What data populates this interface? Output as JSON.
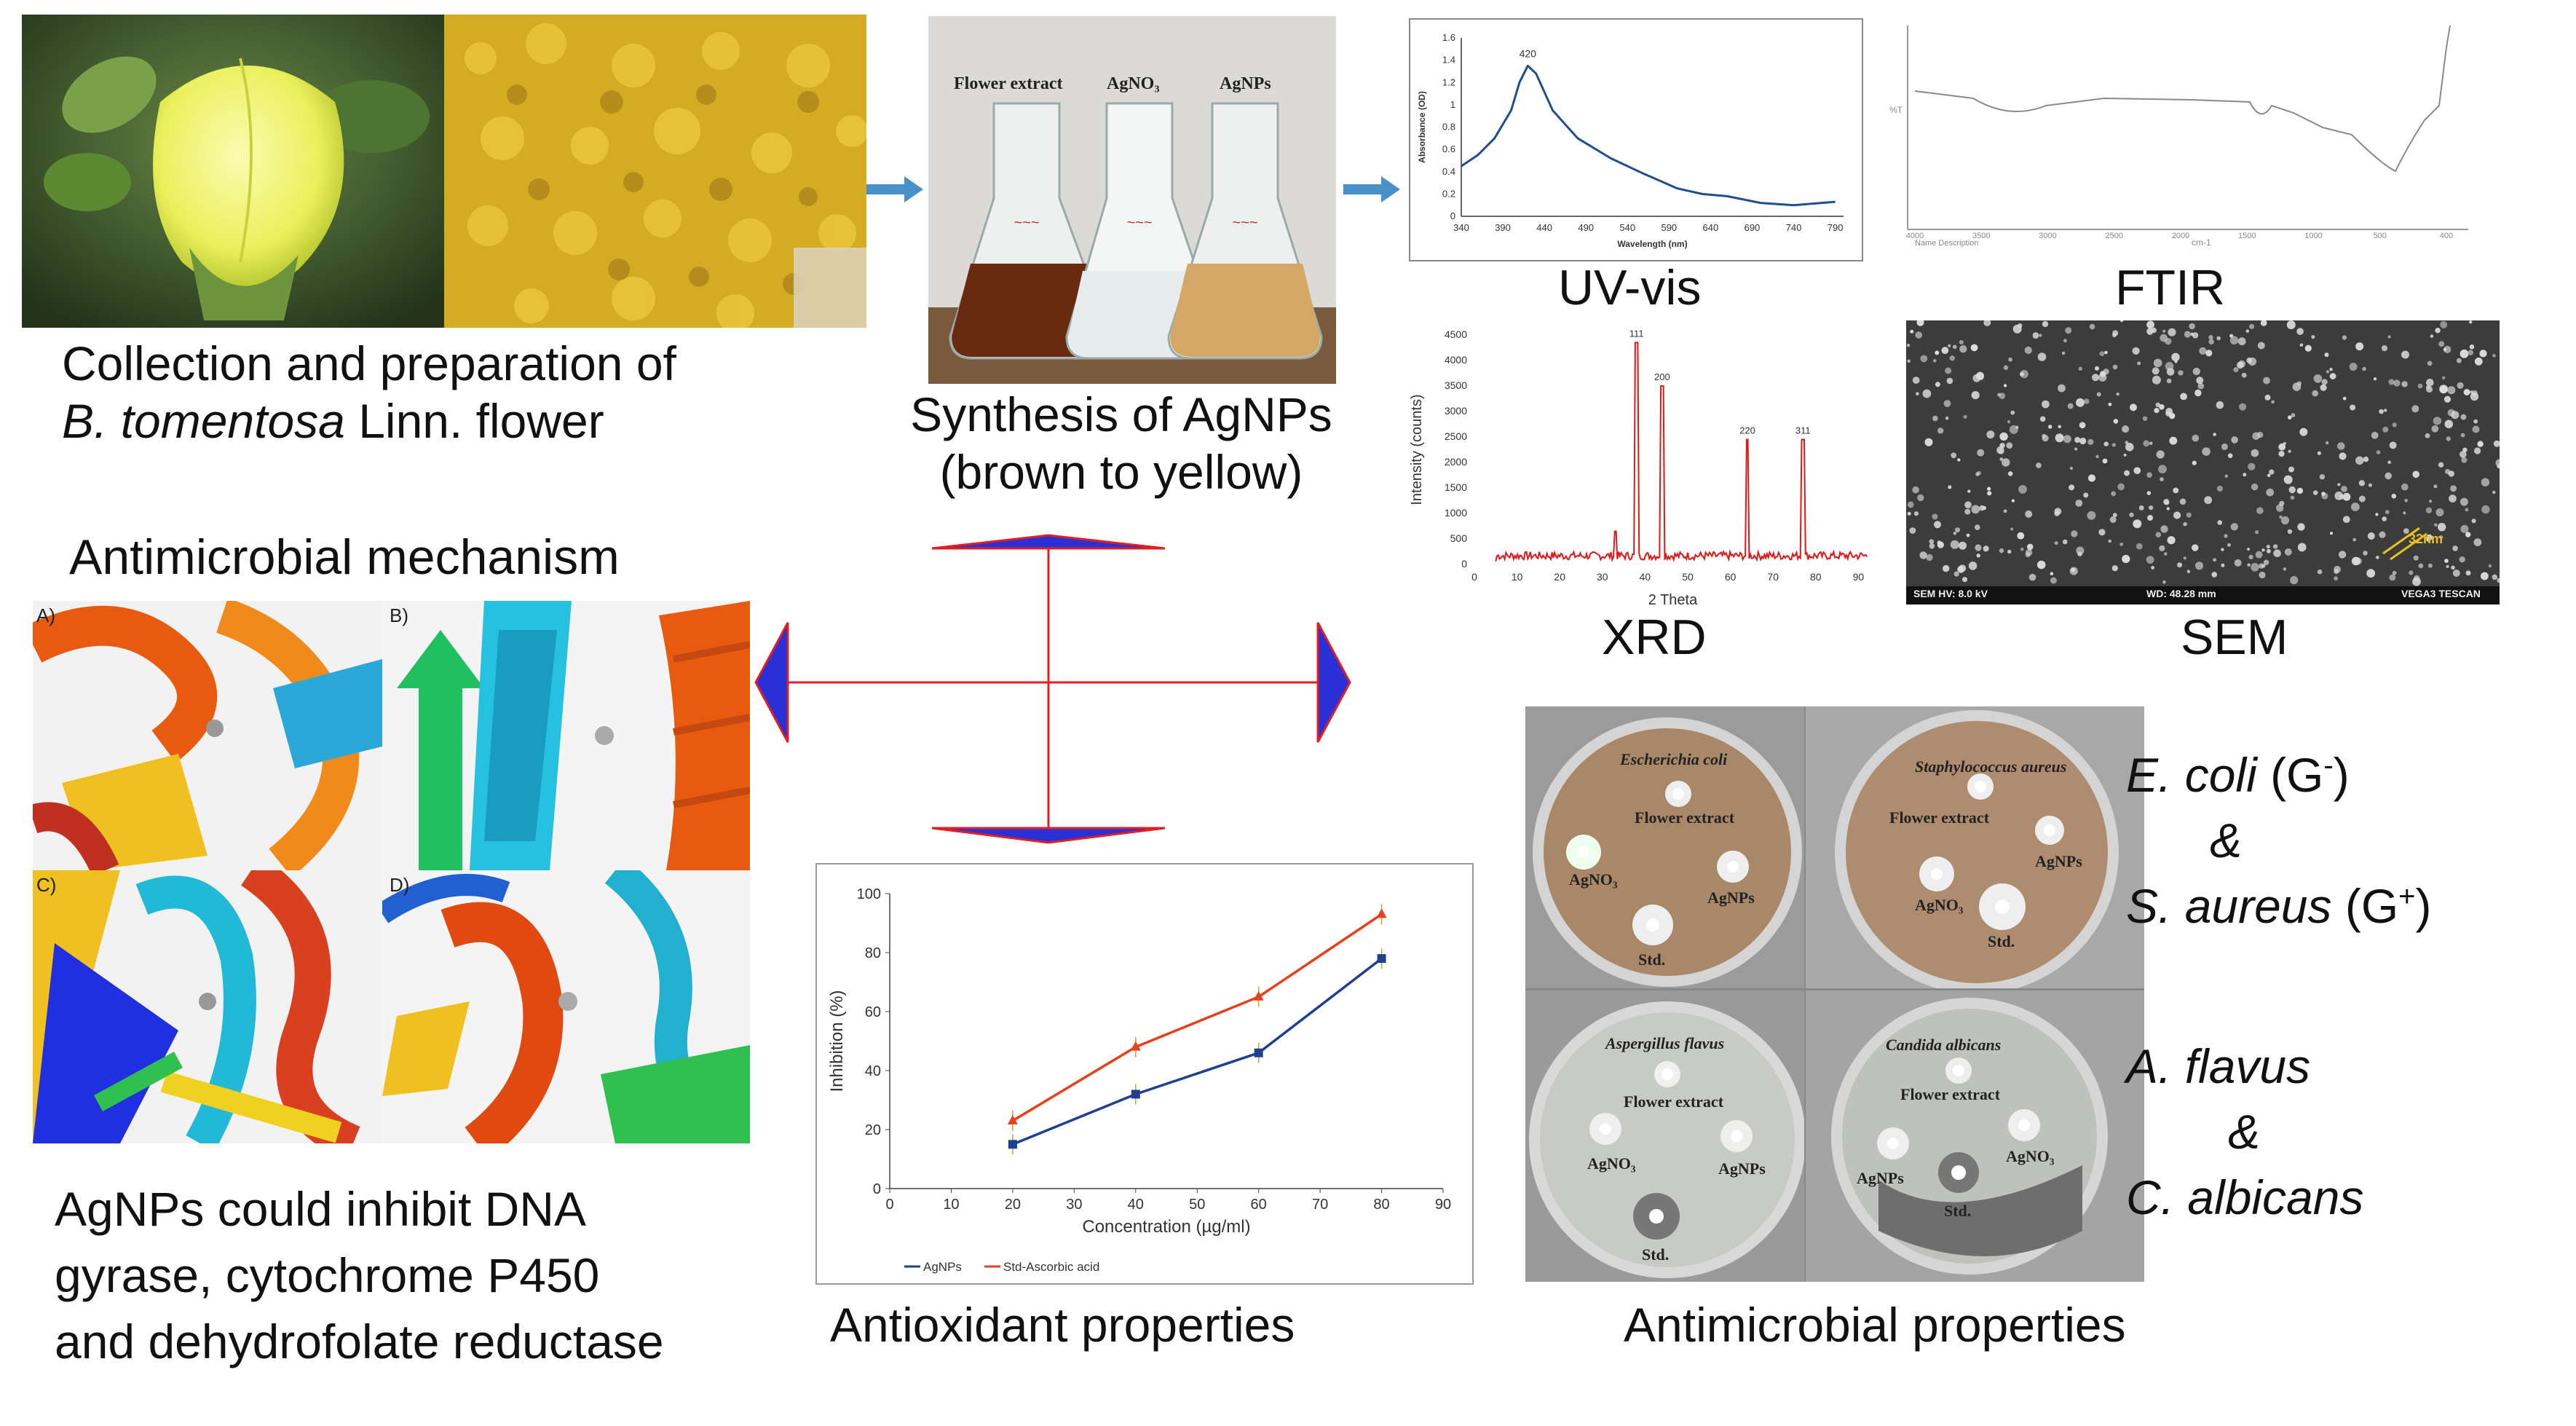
{
  "collection": {
    "caption_line1": "Collection and preparation of",
    "caption_line2_italic": "B. tomentosa",
    "caption_line2_rest": " Linn. flower"
  },
  "synthesis": {
    "flask_labels": [
      "Flower extract",
      "AgNO₃",
      "AgNPs"
    ],
    "caption_line1": "Synthesis of AgNPs",
    "caption_line2": "(brown to yellow)"
  },
  "uvvis": {
    "caption": "UV-vis",
    "chart_data": {
      "type": "line",
      "title": "",
      "xlabel": "Wavelength (nm)",
      "ylabel": "Absorbance (OD)",
      "x_ticks": [
        "340",
        "390",
        "440",
        "490",
        "540",
        "590",
        "640",
        "690",
        "740",
        "790"
      ],
      "y_ticks": [
        "0",
        "0.2",
        "0.4",
        "0.6",
        "0.8",
        "1",
        "1.2",
        "1.4",
        "1.6"
      ],
      "xlim": [
        340,
        800
      ],
      "ylim": [
        0,
        1.6
      ],
      "peak_label": "420",
      "x": [
        340,
        360,
        380,
        400,
        410,
        420,
        430,
        450,
        480,
        520,
        560,
        600,
        630,
        660,
        700,
        740,
        790
      ],
      "y": [
        0.45,
        0.55,
        0.7,
        0.95,
        1.2,
        1.35,
        1.28,
        0.95,
        0.7,
        0.52,
        0.38,
        0.25,
        0.2,
        0.18,
        0.12,
        0.1,
        0.13
      ]
    }
  },
  "ftir": {
    "caption": "FTIR",
    "ylabel": "%T",
    "xlabel": "cm-1",
    "x_ticks": [
      "4000",
      "3500",
      "3000",
      "2500",
      "2000",
      "1500",
      "1000",
      "500",
      "400"
    ],
    "legend": "Name   Description"
  },
  "xrd": {
    "caption": "XRD",
    "chart_data": {
      "type": "line",
      "xlabel": "2 Theta",
      "ylabel": "Intensity (counts)",
      "x_ticks": [
        "0",
        "10",
        "20",
        "30",
        "40",
        "50",
        "60",
        "70",
        "80",
        "90"
      ],
      "y_ticks": [
        "0",
        "500",
        "1000",
        "1500",
        "2000",
        "2500",
        "3000",
        "3500",
        "4000",
        "4500"
      ],
      "xlim": [
        0,
        93
      ],
      "ylim": [
        0,
        4500
      ],
      "peaks": [
        {
          "label": "111",
          "x": 38,
          "y": 4350
        },
        {
          "label": "200",
          "x": 44,
          "y": 3500
        },
        {
          "label": "220",
          "x": 64,
          "y": 2450
        },
        {
          "label": "311",
          "x": 77,
          "y": 2450
        }
      ]
    }
  },
  "sem": {
    "caption": "SEM",
    "scale_label": "32nm",
    "footer_left": "SEM HV: 8.0 kV",
    "footer_mid": "WD: 48.28 mm",
    "footer_right": "VEGA3 TESCAN"
  },
  "mechanism": {
    "title": "Antimicrobial mechanism",
    "panel_labels": [
      "A)",
      "B)",
      "C)",
      "D)"
    ],
    "caption_lines": [
      "AgNPs could inhibit DNA",
      "gyrase,  cytochrome P450",
      "and dehydrofolate reductase"
    ]
  },
  "antioxidant": {
    "caption": "Antioxidant properties",
    "chart_data": {
      "type": "line",
      "xlabel": "Concentration (µg/ml)",
      "ylabel": "Inhibition (%)",
      "x_ticks": [
        "0",
        "10",
        "20",
        "30",
        "40",
        "50",
        "60",
        "70",
        "80",
        "90"
      ],
      "y_ticks": [
        "0",
        "20",
        "40",
        "60",
        "80",
        "100"
      ],
      "xlim": [
        0,
        90
      ],
      "ylim": [
        0,
        100
      ],
      "x": [
        20,
        40,
        60,
        80
      ],
      "series": [
        {
          "name": "AgNPs",
          "values": [
            15,
            32,
            46,
            78
          ],
          "color": "#1f3f8f"
        },
        {
          "name": "Std-Ascorbic acid",
          "values": [
            23,
            48,
            65,
            93
          ],
          "color": "#e8401c"
        }
      ]
    }
  },
  "antimicrobial": {
    "caption": "Antimicrobial properties",
    "plates": [
      {
        "title": "Escherichia coli",
        "labels": [
          "Flower extract",
          "AgNO₃",
          "AgNPs",
          "Std."
        ]
      },
      {
        "title": "Staphylococcus aureus",
        "labels": [
          "Flower extract",
          "AgNPs",
          "AgNO₃",
          "Std."
        ]
      },
      {
        "title": "Aspergillus flavus",
        "labels": [
          "Flower extract",
          "AgNO₃",
          "AgNPs",
          "Std."
        ]
      },
      {
        "title": "Candida albicans",
        "labels": [
          "Flower extract",
          "AgNO₃",
          "AgNPs",
          "Std."
        ]
      }
    ],
    "organisms": {
      "ecoli_italic": "E. coli",
      "ecoli_gram": " (G",
      "ecoli_sup": "-",
      "ecoli_close": ")",
      "amp1": "&",
      "saureus_italic": "S. aureus",
      "saureus_gram": " (G",
      "saureus_sup": "+",
      "saureus_close": ")",
      "aflavus_italic": "A. flavus",
      "amp2": "&",
      "calbicans_italic": "C. albicans"
    }
  },
  "colors": {
    "arrow_fill": "#2b2fd6",
    "arrow_line": "#e02020",
    "flow_arrow": "#4a90c8"
  }
}
